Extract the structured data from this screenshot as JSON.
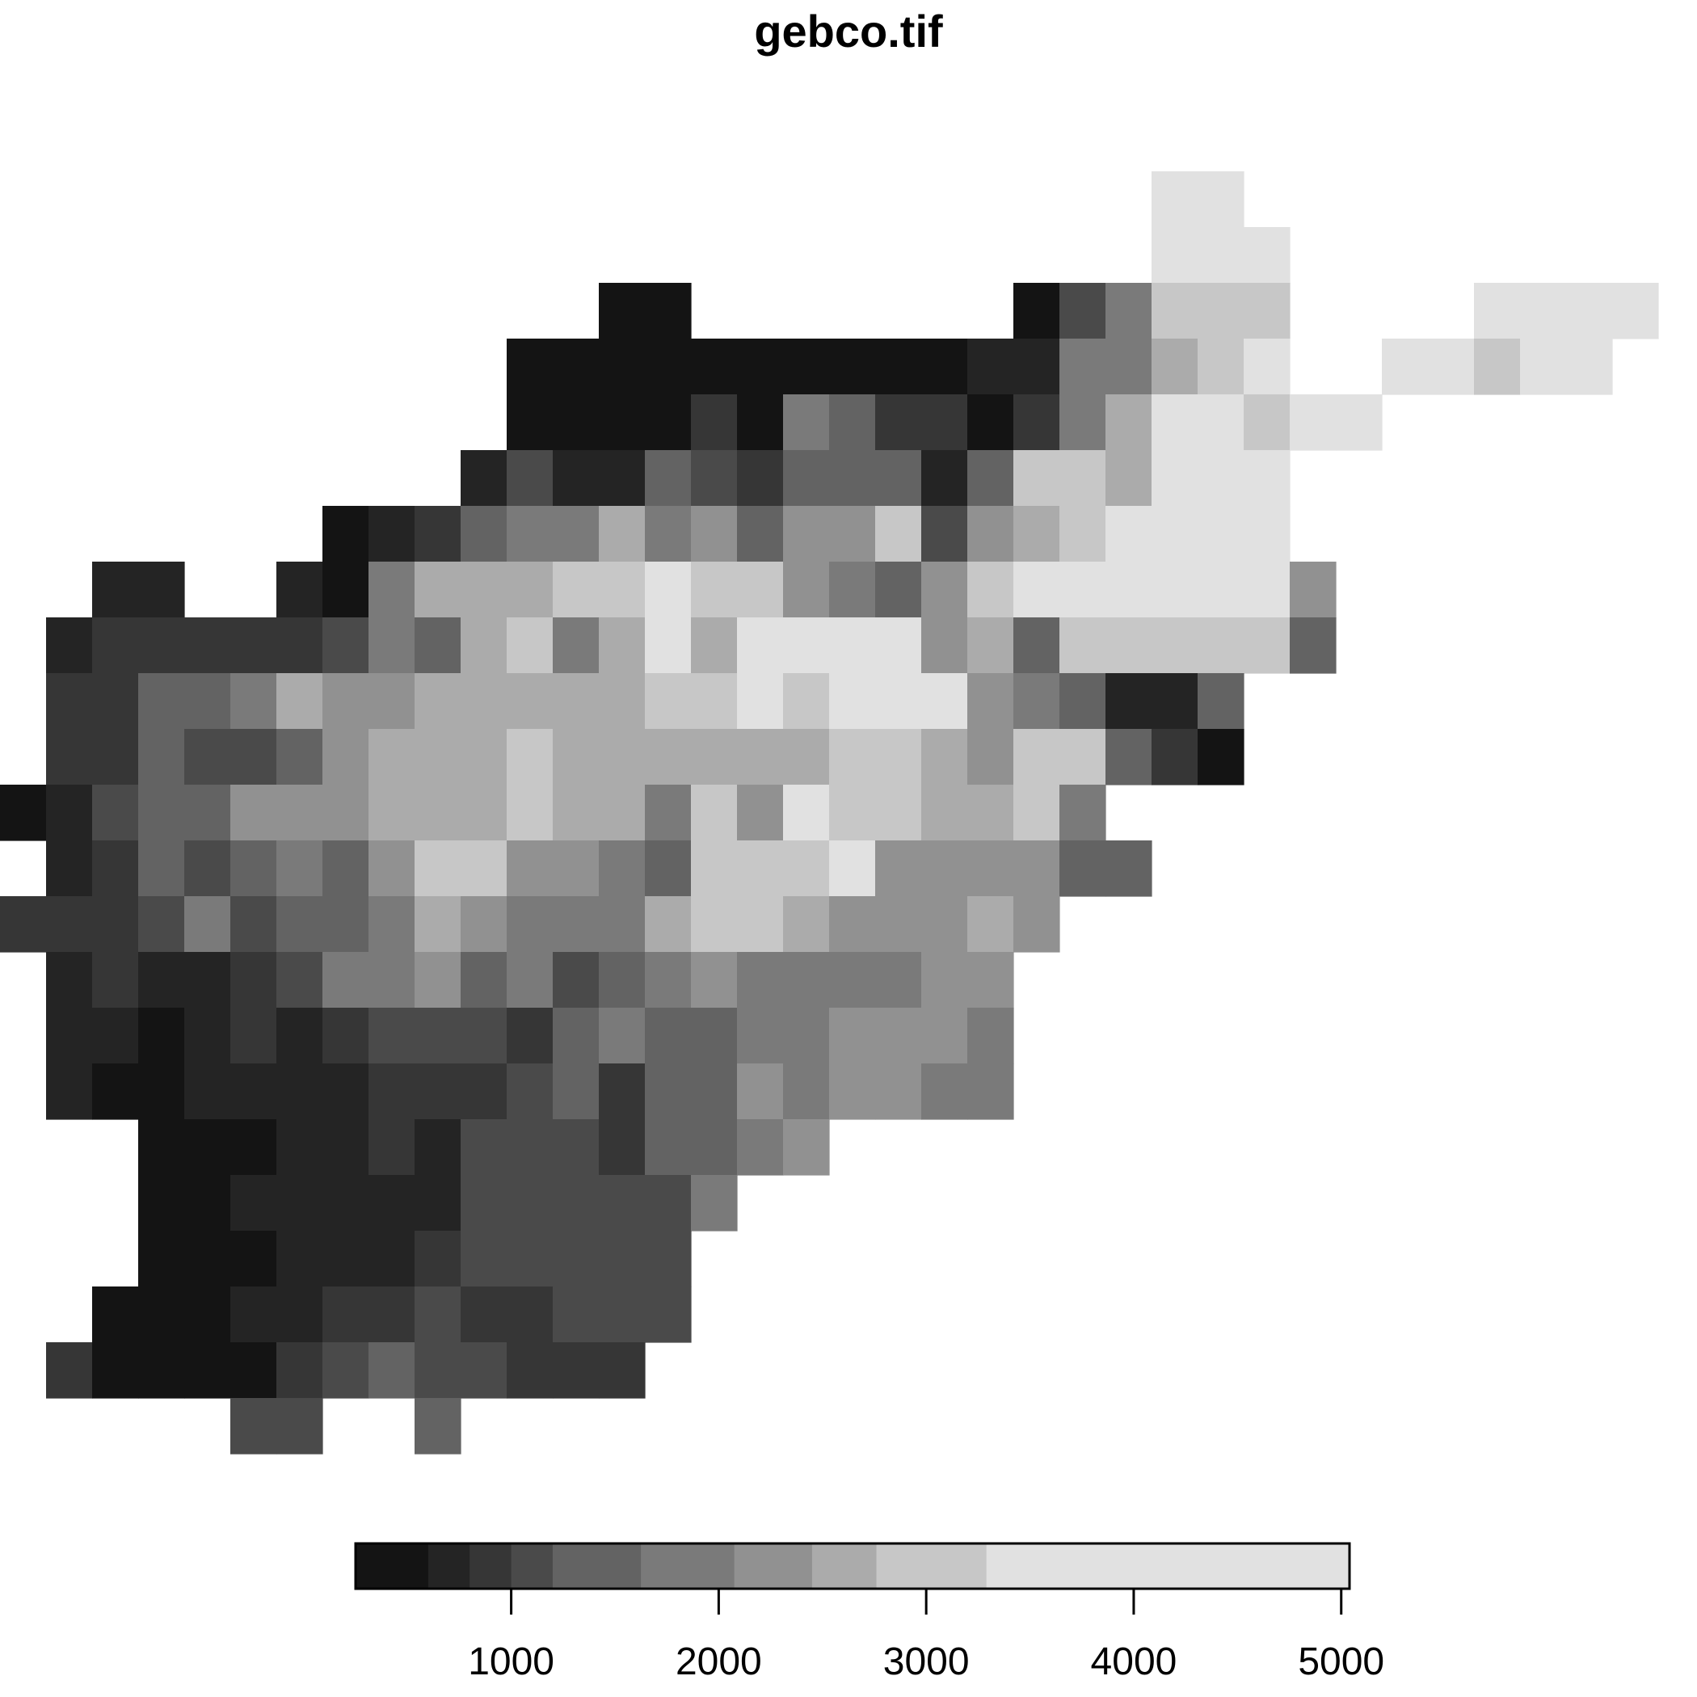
{
  "chart_data": {
    "type": "heatmap",
    "title": "gebco.tif",
    "colormap": "grayscale-dark-to-light",
    "legend": {
      "placement": "bottom",
      "breaks": [
        250,
        600,
        800,
        1000,
        1200,
        1625,
        2075,
        2450,
        2760,
        3290,
        5040
      ],
      "colors": [
        "#141414",
        "#242424",
        "#363636",
        "#4a4a4a",
        "#636363",
        "#7a7a7a",
        "#919191",
        "#ababab",
        "#c7c7c7",
        "#e1e1e1"
      ],
      "ticks": [
        1000,
        2000,
        3000,
        4000,
        5000
      ],
      "tick_labels": [
        "1000",
        "2000",
        "3000",
        "4000",
        "5000"
      ]
    },
    "grid": {
      "ncols": 36,
      "nrows": 23,
      "row_values": [
        [
          null,
          null,
          null,
          null,
          null,
          null,
          null,
          null,
          null,
          null,
          null,
          null,
          null,
          null,
          null,
          null,
          null,
          null,
          null,
          null,
          null,
          null,
          null,
          null,
          null,
          3800,
          3700,
          null,
          null,
          null,
          null,
          null,
          null,
          null,
          null,
          null
        ],
        [
          null,
          null,
          null,
          null,
          null,
          null,
          null,
          null,
          null,
          null,
          null,
          null,
          null,
          null,
          null,
          null,
          null,
          null,
          null,
          null,
          null,
          null,
          null,
          null,
          null,
          3700,
          3700,
          3700,
          null,
          null,
          null,
          null,
          null,
          null,
          null,
          null
        ],
        [
          null,
          null,
          null,
          null,
          null,
          null,
          null,
          null,
          null,
          null,
          null,
          null,
          null,
          300,
          300,
          null,
          null,
          null,
          null,
          null,
          null,
          null,
          300,
          1000,
          1800,
          3000,
          3000,
          3000,
          null,
          null,
          null,
          null,
          3700,
          3700,
          3700,
          3700
        ],
        [
          null,
          null,
          null,
          null,
          null,
          null,
          null,
          null,
          null,
          null,
          null,
          300,
          300,
          300,
          300,
          300,
          300,
          300,
          300,
          300,
          300,
          600,
          600,
          1800,
          1800,
          2500,
          3000,
          3700,
          null,
          null,
          3700,
          3700,
          3000,
          3700,
          3700,
          null
        ],
        [
          null,
          null,
          null,
          null,
          null,
          null,
          null,
          null,
          null,
          null,
          null,
          300,
          300,
          300,
          300,
          900,
          300,
          1800,
          1400,
          900,
          900,
          300,
          900,
          1800,
          2500,
          3700,
          3700,
          3000,
          3700,
          3700,
          null,
          null,
          null,
          null,
          null,
          null
        ],
        [
          null,
          null,
          null,
          null,
          null,
          null,
          null,
          null,
          null,
          null,
          600,
          1000,
          600,
          600,
          1400,
          1000,
          900,
          1400,
          1400,
          1400,
          600,
          1400,
          3000,
          3000,
          2500,
          3700,
          3700,
          3700,
          null,
          null,
          null,
          null,
          null,
          null,
          null,
          null
        ],
        [
          null,
          null,
          null,
          null,
          null,
          null,
          null,
          300,
          600,
          900,
          1400,
          1800,
          1800,
          2500,
          1800,
          2200,
          1400,
          2200,
          2200,
          3000,
          1000,
          2200,
          2500,
          3000,
          3700,
          3700,
          3700,
          3700,
          null,
          null,
          null,
          null,
          null,
          null,
          null,
          null
        ],
        [
          null,
          null,
          600,
          600,
          null,
          null,
          600,
          300,
          1800,
          2500,
          2500,
          2500,
          3000,
          3000,
          3700,
          3000,
          3000,
          2200,
          1800,
          1400,
          2200,
          3000,
          3700,
          3700,
          3700,
          3700,
          3700,
          3700,
          2200,
          null,
          null,
          null,
          null,
          null,
          null,
          null
        ],
        [
          null,
          600,
          900,
          900,
          900,
          900,
          900,
          1000,
          1800,
          1400,
          2500,
          3000,
          1800,
          2500,
          3700,
          2500,
          3700,
          3700,
          3700,
          3700,
          2200,
          2500,
          1400,
          3000,
          3000,
          3000,
          3000,
          3000,
          1400,
          null,
          null,
          null,
          null,
          null,
          null,
          null
        ],
        [
          null,
          900,
          900,
          1400,
          1400,
          1800,
          2500,
          2200,
          2200,
          2500,
          2500,
          2500,
          2500,
          2500,
          3000,
          3000,
          3700,
          3000,
          3700,
          3700,
          3700,
          2200,
          1800,
          1400,
          600,
          600,
          1400,
          null,
          null,
          null,
          null,
          null,
          null,
          null,
          null,
          null
        ],
        [
          null,
          900,
          900,
          1400,
          1000,
          1000,
          1400,
          2200,
          2500,
          2500,
          2500,
          3000,
          2500,
          2500,
          2500,
          2500,
          2500,
          2500,
          3000,
          3000,
          2500,
          2200,
          3000,
          3000,
          1400,
          900,
          300,
          null,
          null,
          null,
          null,
          null,
          null,
          null,
          null,
          null
        ],
        [
          300,
          600,
          1000,
          1400,
          1400,
          2200,
          2200,
          2200,
          2500,
          2500,
          2500,
          3000,
          2500,
          2500,
          1800,
          3000,
          2200,
          3700,
          3000,
          3000,
          2500,
          2500,
          3000,
          1800,
          null,
          null,
          null,
          null,
          null,
          null,
          null,
          null,
          null,
          null,
          null,
          null
        ],
        [
          null,
          600,
          900,
          1400,
          1000,
          1400,
          1800,
          1400,
          2200,
          3000,
          3000,
          2200,
          2200,
          1800,
          1400,
          3000,
          3000,
          3000,
          3700,
          2200,
          2200,
          2200,
          2200,
          1400,
          1400,
          null,
          null,
          null,
          null,
          null,
          null,
          null,
          null,
          null,
          null,
          null
        ],
        [
          900,
          900,
          900,
          1000,
          1800,
          1000,
          1400,
          1400,
          1800,
          2500,
          2200,
          1800,
          1800,
          1800,
          2500,
          3000,
          3000,
          2500,
          2200,
          2200,
          2200,
          2500,
          2200,
          null,
          null,
          null,
          null,
          null,
          null,
          null,
          null,
          null,
          null,
          null,
          null,
          null
        ],
        [
          null,
          600,
          900,
          600,
          600,
          900,
          1000,
          1800,
          1800,
          2200,
          1400,
          1800,
          1000,
          1400,
          1800,
          2200,
          1800,
          1800,
          1800,
          1800,
          2200,
          2200,
          null,
          null,
          null,
          null,
          null,
          null,
          null,
          null,
          null,
          null,
          null,
          null,
          null,
          null
        ],
        [
          null,
          600,
          600,
          300,
          600,
          900,
          600,
          900,
          1000,
          1000,
          1000,
          900,
          1400,
          1800,
          1400,
          1400,
          1800,
          1800,
          2200,
          2200,
          2200,
          1800,
          null,
          null,
          null,
          null,
          null,
          null,
          null,
          null,
          null,
          null,
          null,
          null,
          null,
          null
        ],
        [
          null,
          600,
          300,
          300,
          600,
          600,
          600,
          600,
          900,
          900,
          900,
          1000,
          1400,
          900,
          1400,
          1400,
          2200,
          1800,
          2200,
          2200,
          1800,
          1800,
          null,
          null,
          null,
          null,
          null,
          null,
          null,
          null,
          null,
          null,
          null,
          null,
          null,
          null
        ],
        [
          null,
          null,
          null,
          300,
          300,
          300,
          600,
          600,
          900,
          600,
          1000,
          1000,
          1000,
          900,
          1400,
          1400,
          1800,
          2200,
          null,
          null,
          null,
          null,
          null,
          null,
          null,
          null,
          null,
          null,
          null,
          null,
          null,
          null,
          null,
          null,
          null,
          null
        ],
        [
          null,
          null,
          null,
          300,
          300,
          600,
          600,
          600,
          600,
          600,
          1000,
          1000,
          1000,
          1000,
          1000,
          1800,
          null,
          null,
          null,
          null,
          null,
          null,
          null,
          null,
          null,
          null,
          null,
          null,
          null,
          null,
          null,
          null,
          null,
          null,
          null,
          null
        ],
        [
          null,
          null,
          null,
          300,
          300,
          300,
          600,
          600,
          600,
          900,
          1000,
          1000,
          1000,
          1000,
          1000,
          null,
          null,
          null,
          null,
          null,
          null,
          null,
          null,
          null,
          null,
          null,
          null,
          null,
          null,
          null,
          null,
          null,
          null,
          null,
          null,
          null
        ],
        [
          null,
          null,
          300,
          300,
          300,
          600,
          600,
          900,
          900,
          1000,
          900,
          900,
          1000,
          1000,
          1000,
          null,
          null,
          null,
          null,
          null,
          null,
          null,
          null,
          null,
          null,
          null,
          null,
          null,
          null,
          null,
          null,
          null,
          null,
          null,
          null,
          null
        ],
        [
          null,
          900,
          300,
          300,
          300,
          300,
          900,
          1000,
          1400,
          1000,
          1000,
          900,
          900,
          900,
          null,
          null,
          null,
          null,
          null,
          null,
          null,
          null,
          null,
          null,
          null,
          null,
          null,
          null,
          null,
          null,
          null,
          null,
          null,
          null,
          null,
          null
        ],
        [
          null,
          null,
          null,
          null,
          null,
          1000,
          1000,
          null,
          null,
          1400,
          null,
          null,
          null,
          null,
          null,
          null,
          null,
          null,
          null,
          null,
          null,
          null,
          null,
          null,
          null,
          null,
          null,
          null,
          null,
          null,
          null,
          null,
          null,
          null,
          null,
          null
        ]
      ]
    }
  }
}
